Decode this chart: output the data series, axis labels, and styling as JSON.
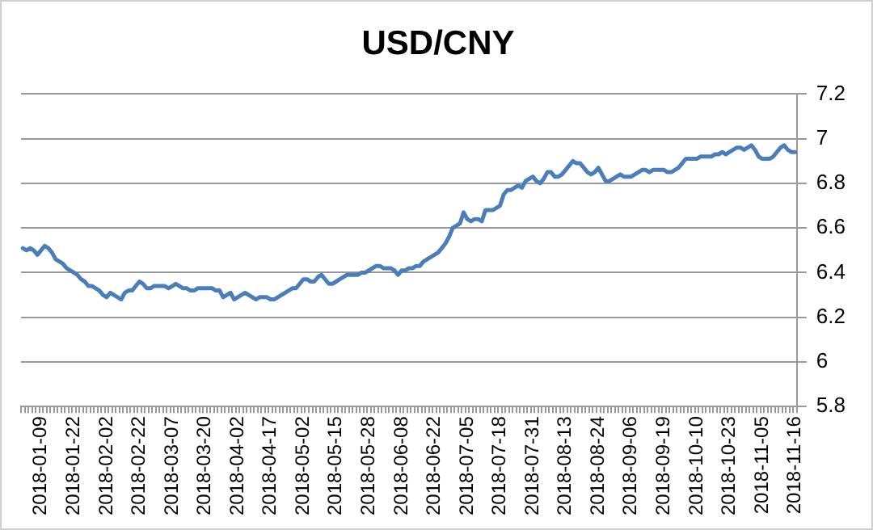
{
  "chart_data": {
    "type": "line",
    "title": "USD/CNY",
    "categories": [
      null,
      null,
      null,
      null,
      null,
      "2018-01-09",
      null,
      null,
      null,
      null,
      null,
      null,
      null,
      null,
      "2018-01-22",
      null,
      null,
      null,
      null,
      null,
      null,
      null,
      null,
      "2018-02-02",
      null,
      null,
      null,
      null,
      null,
      null,
      null,
      null,
      "2018-02-22",
      null,
      null,
      null,
      null,
      null,
      null,
      null,
      null,
      "2018-03-07",
      null,
      null,
      null,
      null,
      null,
      null,
      null,
      null,
      "2018-03-20",
      null,
      null,
      null,
      null,
      null,
      null,
      null,
      null,
      "2018-04-02",
      null,
      null,
      null,
      null,
      null,
      null,
      null,
      null,
      "2018-04-17",
      null,
      null,
      null,
      null,
      null,
      null,
      null,
      null,
      "2018-05-02",
      null,
      null,
      null,
      null,
      null,
      null,
      null,
      null,
      "2018-05-15",
      null,
      null,
      null,
      null,
      null,
      null,
      null,
      null,
      "2018-05-28",
      null,
      null,
      null,
      null,
      null,
      null,
      null,
      null,
      "2018-06-08",
      null,
      null,
      null,
      null,
      null,
      null,
      null,
      null,
      "2018-06-22",
      null,
      null,
      null,
      null,
      null,
      null,
      null,
      null,
      "2018-07-05",
      null,
      null,
      null,
      null,
      null,
      null,
      null,
      null,
      "2018-07-18",
      null,
      null,
      null,
      null,
      null,
      null,
      null,
      null,
      "2018-07-31",
      null,
      null,
      null,
      null,
      null,
      null,
      null,
      null,
      "2018-08-13",
      null,
      null,
      null,
      null,
      null,
      null,
      null,
      null,
      "2018-08-24",
      null,
      null,
      null,
      null,
      null,
      null,
      null,
      null,
      "2018-09-06",
      null,
      null,
      null,
      null,
      null,
      null,
      null,
      null,
      "2018-09-19",
      null,
      null,
      null,
      null,
      null,
      null,
      null,
      null,
      "2018-10-10",
      null,
      null,
      null,
      null,
      null,
      null,
      null,
      null,
      "2018-10-23",
      null,
      null,
      null,
      null,
      null,
      null,
      null,
      null,
      "2018-11-05",
      null,
      null,
      null,
      null,
      null,
      null,
      null,
      null,
      "2018-11-16"
    ],
    "series": [
      {
        "color": "#4a7ebb",
        "values": [
          6.51,
          6.5,
          6.51,
          6.5,
          6.48,
          6.5,
          6.52,
          6.51,
          6.49,
          6.46,
          6.45,
          6.44,
          6.42,
          6.41,
          6.4,
          6.39,
          6.37,
          6.36,
          6.34,
          6.34,
          6.33,
          6.32,
          6.3,
          6.29,
          6.31,
          6.3,
          6.29,
          6.28,
          6.31,
          6.32,
          6.32,
          6.34,
          6.36,
          6.35,
          6.33,
          6.33,
          6.34,
          6.34,
          6.34,
          6.34,
          6.33,
          6.34,
          6.35,
          6.34,
          6.33,
          6.33,
          6.32,
          6.32,
          6.33,
          6.33,
          6.33,
          6.33,
          6.33,
          6.32,
          6.32,
          6.29,
          6.3,
          6.31,
          6.28,
          6.29,
          6.3,
          6.31,
          6.3,
          6.29,
          6.28,
          6.29,
          6.29,
          6.29,
          6.28,
          6.28,
          6.29,
          6.3,
          6.31,
          6.32,
          6.33,
          6.33,
          6.35,
          6.37,
          6.37,
          6.36,
          6.36,
          6.38,
          6.39,
          6.37,
          6.35,
          6.35,
          6.36,
          6.37,
          6.38,
          6.39,
          6.39,
          6.39,
          6.39,
          6.4,
          6.4,
          6.41,
          6.42,
          6.43,
          6.43,
          6.42,
          6.42,
          6.42,
          6.41,
          6.39,
          6.41,
          6.41,
          6.42,
          6.42,
          6.43,
          6.43,
          6.45,
          6.46,
          6.47,
          6.48,
          6.49,
          6.51,
          6.53,
          6.56,
          6.6,
          6.61,
          6.62,
          6.67,
          6.64,
          6.63,
          6.64,
          6.64,
          6.63,
          6.68,
          6.68,
          6.68,
          6.69,
          6.7,
          6.75,
          6.77,
          6.77,
          6.78,
          6.79,
          6.78,
          6.81,
          6.82,
          6.83,
          6.81,
          6.8,
          6.82,
          6.85,
          6.85,
          6.83,
          6.83,
          6.84,
          6.86,
          6.88,
          6.9,
          6.89,
          6.89,
          6.87,
          6.85,
          6.84,
          6.85,
          6.87,
          6.84,
          6.81,
          6.81,
          6.82,
          6.83,
          6.84,
          6.83,
          6.83,
          6.83,
          6.84,
          6.85,
          6.86,
          6.86,
          6.85,
          6.86,
          6.86,
          6.86,
          6.86,
          6.85,
          6.85,
          6.86,
          6.87,
          6.89,
          6.91,
          6.91,
          6.91,
          6.91,
          6.92,
          6.92,
          6.92,
          6.92,
          6.93,
          6.93,
          6.94,
          6.93,
          6.94,
          6.95,
          6.96,
          6.96,
          6.95,
          6.96,
          6.97,
          6.95,
          6.92,
          6.91,
          6.91,
          6.91,
          6.92,
          6.94,
          6.96,
          6.97,
          6.95,
          6.94,
          6.94
        ]
      }
    ],
    "ylim": [
      5.8,
      7.2
    ],
    "yticks": [
      5.8,
      6,
      6.2,
      6.4,
      6.6,
      6.8,
      7,
      7.2
    ],
    "grid": "y",
    "legend": false
  }
}
